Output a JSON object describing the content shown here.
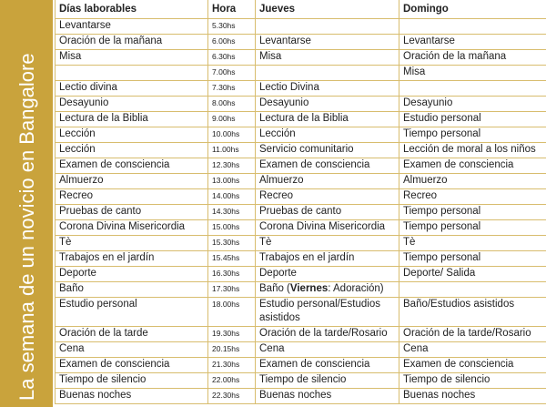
{
  "side_title": "La semana de un novicio en Bangalore",
  "table": {
    "headers": [
      "Días laborables",
      "Hora",
      "Jueves",
      "Domingo"
    ],
    "rows": [
      [
        "Levantarse",
        "5.30hs",
        null,
        null
      ],
      [
        "Oración de la mañana",
        "6.00hs",
        "Levantarse",
        "Levantarse"
      ],
      [
        "Misa",
        "6.30hs",
        "Misa",
        "Oración de la mañana"
      ],
      [
        null,
        "7.00hs",
        null,
        "Misa"
      ],
      [
        "Lectio divina",
        "7.30hs",
        "Lectio Divina",
        null
      ],
      [
        "Desayunio",
        "8.00hs",
        "Desayunio",
        "Desayunio"
      ],
      [
        "Lectura de la Biblia",
        "9.00hs",
        "Lectura de la Biblia",
        "Estudio personal"
      ],
      [
        "Lección",
        "10.00hs",
        "Lección",
        "Tiempo personal"
      ],
      [
        "Lección",
        "11.00hs",
        "Servicio comunitario",
        "Lección de moral a los niños"
      ],
      [
        "Examen de consciencia",
        "12.30hs",
        "Examen de consciencia",
        "Examen de consciencia"
      ],
      [
        "Almuerzo",
        "13.00hs",
        "Almuerzo",
        "Almuerzo"
      ],
      [
        "Recreo",
        "14.00hs",
        "Recreo",
        "Recreo"
      ],
      [
        "Pruebas de canto",
        "14.30hs",
        "Pruebas de canto",
        "Tiempo personal"
      ],
      [
        "Corona Divina Misericordia",
        "15.00hs",
        "Corona Divina Misericordia",
        "Tiempo personal"
      ],
      [
        "Tè",
        "15.30hs",
        "Tè",
        "Tè"
      ],
      [
        "Trabajos en el jardín",
        "15.45hs",
        "Trabajos en el jardín",
        "Tiempo personal"
      ],
      [
        "Deporte",
        "16.30hs",
        "Deporte",
        "Deporte/ Salida"
      ],
      [
        "Baño",
        "17.30hs",
        [
          "Baño (",
          "Viernes",
          ": Adoración)"
        ],
        null
      ],
      [
        "Estudio personal",
        "18.00hs",
        "Estudio personal/Estudios asistidos",
        "Baño/Estudios asistidos"
      ],
      [
        "Oración de la tarde",
        "19.30hs",
        "Oración de la tarde/Rosario",
        "Oración de la tarde/Rosario"
      ],
      [
        "Cena",
        "20.15hs",
        "Cena",
        "Cena"
      ],
      [
        "Examen de consciencia",
        "21.30hs",
        "Examen de consciencia",
        "Examen de consciencia"
      ],
      [
        "Tiempo de silencio",
        "22.00hs",
        "Tiempo de silencio",
        "Tiempo de silencio"
      ],
      [
        "Buenas noches",
        "22.30hs",
        "Buenas noches",
        "Buenas noches"
      ]
    ]
  }
}
